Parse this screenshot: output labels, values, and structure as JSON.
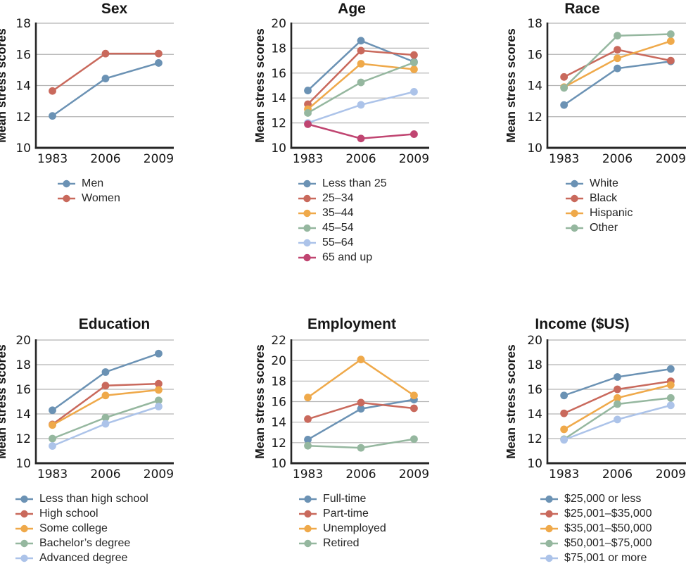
{
  "figure": {
    "y_axis_label": "Mean stress scores",
    "x_categories": [
      "1983",
      "2006",
      "2009"
    ],
    "text_color": "#161616",
    "gridline_color": "#b3b3b3",
    "axis_color": "#262626"
  },
  "chart_data": [
    {
      "type": "line",
      "title": "Sex",
      "ylabel": "Mean stress scores",
      "x": [
        "1983",
        "2006",
        "2009"
      ],
      "ylim": [
        10,
        18
      ],
      "yticks": [
        10,
        12,
        14,
        16,
        18
      ],
      "grid": true,
      "legend_position": "below-left",
      "series": [
        {
          "name": "Men",
          "color": "#6b92b4",
          "values": [
            12.05,
            14.45,
            15.45
          ]
        },
        {
          "name": "Women",
          "color": "#c9695c",
          "values": [
            13.65,
            16.05,
            16.05
          ]
        }
      ]
    },
    {
      "type": "line",
      "title": "Age",
      "ylabel": "Mean stress scores",
      "x": [
        "1983",
        "2006",
        "2009"
      ],
      "ylim": [
        10,
        20
      ],
      "yticks": [
        10,
        12,
        14,
        16,
        18,
        20
      ],
      "grid": true,
      "legend_position": "below-left",
      "series": [
        {
          "name": "Less than 25",
          "color": "#6b92b4",
          "values": [
            14.6,
            18.6,
            16.9
          ]
        },
        {
          "name": "25–34",
          "color": "#c9695c",
          "values": [
            13.5,
            17.8,
            17.45
          ]
        },
        {
          "name": "35–44",
          "color": "#efa94a",
          "values": [
            13.1,
            16.75,
            16.3
          ]
        },
        {
          "name": "45–54",
          "color": "#95b79f",
          "values": [
            12.8,
            15.25,
            16.85
          ]
        },
        {
          "name": "55–64",
          "color": "#acc3e9",
          "values": [
            12.0,
            13.45,
            14.5
          ]
        },
        {
          "name": "65 and up",
          "color": "#c04571",
          "values": [
            11.9,
            10.75,
            11.1
          ]
        }
      ]
    },
    {
      "type": "line",
      "title": "Race",
      "ylabel": "Mean stress scores",
      "x": [
        "1983",
        "2006",
        "2009"
      ],
      "ylim": [
        10,
        18
      ],
      "yticks": [
        10,
        12,
        14,
        16,
        18
      ],
      "grid": true,
      "legend_position": "below-left",
      "series": [
        {
          "name": "White",
          "color": "#6b92b4",
          "values": [
            12.75,
            15.1,
            15.55
          ]
        },
        {
          "name": "Black",
          "color": "#c9695c",
          "values": [
            14.55,
            16.3,
            15.6
          ]
        },
        {
          "name": "Hispanic",
          "color": "#efa94a",
          "values": [
            13.9,
            15.75,
            16.85
          ]
        },
        {
          "name": "Other",
          "color": "#95b79f",
          "values": [
            13.85,
            17.2,
            17.3
          ]
        }
      ]
    },
    {
      "type": "line",
      "title": "Education",
      "ylabel": "Mean stress scores",
      "x": [
        "1983",
        "2006",
        "2009"
      ],
      "ylim": [
        10,
        20
      ],
      "yticks": [
        10,
        12,
        14,
        16,
        18,
        20
      ],
      "grid": true,
      "legend_position": "below-left",
      "series": [
        {
          "name": "Less than high school",
          "color": "#6b92b4",
          "values": [
            14.3,
            17.4,
            18.9
          ]
        },
        {
          "name": "High school",
          "color": "#c9695c",
          "values": [
            13.15,
            16.3,
            16.45
          ]
        },
        {
          "name": "Some college",
          "color": "#efa94a",
          "values": [
            13.1,
            15.5,
            15.95
          ]
        },
        {
          "name": "Bachelor’s degree",
          "color": "#95b79f",
          "values": [
            12.0,
            13.7,
            15.1
          ]
        },
        {
          "name": "Advanced degree",
          "color": "#acc3e9",
          "values": [
            11.4,
            13.2,
            14.6
          ]
        }
      ]
    },
    {
      "type": "line",
      "title": "Employment",
      "ylabel": "Mean stress scores",
      "x": [
        "1983",
        "2006",
        "2009"
      ],
      "ylim": [
        10,
        22
      ],
      "yticks": [
        10,
        12,
        14,
        16,
        18,
        20,
        22
      ],
      "grid": true,
      "legend_position": "below-left",
      "series": [
        {
          "name": "Full-time",
          "color": "#6b92b4",
          "values": [
            12.3,
            15.3,
            16.2
          ]
        },
        {
          "name": "Part-time",
          "color": "#c9695c",
          "values": [
            14.3,
            15.9,
            15.35
          ]
        },
        {
          "name": "Unemployed",
          "color": "#efa94a",
          "values": [
            16.4,
            20.1,
            16.6
          ]
        },
        {
          "name": "Retired",
          "color": "#95b79f",
          "values": [
            11.7,
            11.5,
            12.35
          ]
        }
      ]
    },
    {
      "type": "line",
      "title": "Income ($US)",
      "ylabel": "Mean stress scores",
      "x": [
        "1983",
        "2006",
        "2009"
      ],
      "ylim": [
        10,
        20
      ],
      "yticks": [
        10,
        12,
        14,
        16,
        18,
        20
      ],
      "grid": true,
      "legend_position": "below-left",
      "series": [
        {
          "name": "$25,000 or less",
          "color": "#6b92b4",
          "values": [
            15.5,
            17.0,
            17.65
          ]
        },
        {
          "name": "$25,001–$35,000",
          "color": "#c9695c",
          "values": [
            14.05,
            16.0,
            16.65
          ]
        },
        {
          "name": "$35,001–$50,000",
          "color": "#efa94a",
          "values": [
            12.75,
            15.3,
            16.35
          ]
        },
        {
          "name": "$50,001–$75,000",
          "color": "#95b79f",
          "values": [
            11.95,
            14.8,
            15.3
          ]
        },
        {
          "name": "$75,001 or more",
          "color": "#acc3e9",
          "values": [
            11.9,
            13.55,
            14.7
          ]
        }
      ]
    }
  ]
}
